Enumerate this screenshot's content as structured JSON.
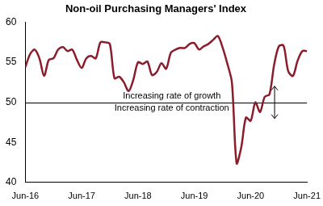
{
  "chart_data": {
    "type": "line",
    "title": "Non-oil Purchasing Managers' Index",
    "categories": [
      "Jun-16",
      null,
      null,
      null,
      null,
      null,
      null,
      null,
      null,
      null,
      null,
      null,
      "Jun-17",
      null,
      null,
      null,
      null,
      null,
      null,
      null,
      null,
      null,
      null,
      null,
      "Jun-18",
      null,
      null,
      null,
      null,
      null,
      null,
      null,
      null,
      null,
      null,
      null,
      "Jun-19",
      null,
      null,
      null,
      null,
      null,
      null,
      null,
      null,
      null,
      null,
      null,
      "Jun-20",
      null,
      null,
      null,
      null,
      null,
      null,
      null,
      null,
      null,
      null,
      null,
      "Jun-21"
    ],
    "values": [
      54.4,
      56.0,
      56.6,
      55.5,
      53.3,
      55.3,
      55.5,
      56.6,
      56.9,
      56.4,
      56.6,
      55.3,
      54.3,
      55.5,
      55.8,
      55.5,
      57.5,
      57.5,
      57.3,
      53.0,
      53.2,
      52.5,
      51.4,
      52.8,
      55.0,
      54.8,
      55.1,
      53.4,
      53.8,
      54.9,
      54.2,
      56.2,
      56.6,
      56.8,
      56.8,
      57.3,
      57.4,
      56.6,
      57.0,
      57.3,
      57.8,
      58.3,
      56.9,
      54.9,
      52.5,
      42.4,
      44.4,
      48.1,
      47.7,
      50.0,
      48.8,
      50.7,
      51.0,
      54.7,
      57.0,
      57.1,
      53.9,
      53.3,
      55.2,
      56.4,
      56.4
    ],
    "color": "#8b1c2c",
    "ylim": [
      40,
      60
    ],
    "yticks": [
      40,
      45,
      50,
      55,
      60
    ],
    "grid": false,
    "reference_line": 50,
    "annotations": [
      "Increasing rate of growth",
      "Increasing rate of contraction"
    ]
  }
}
